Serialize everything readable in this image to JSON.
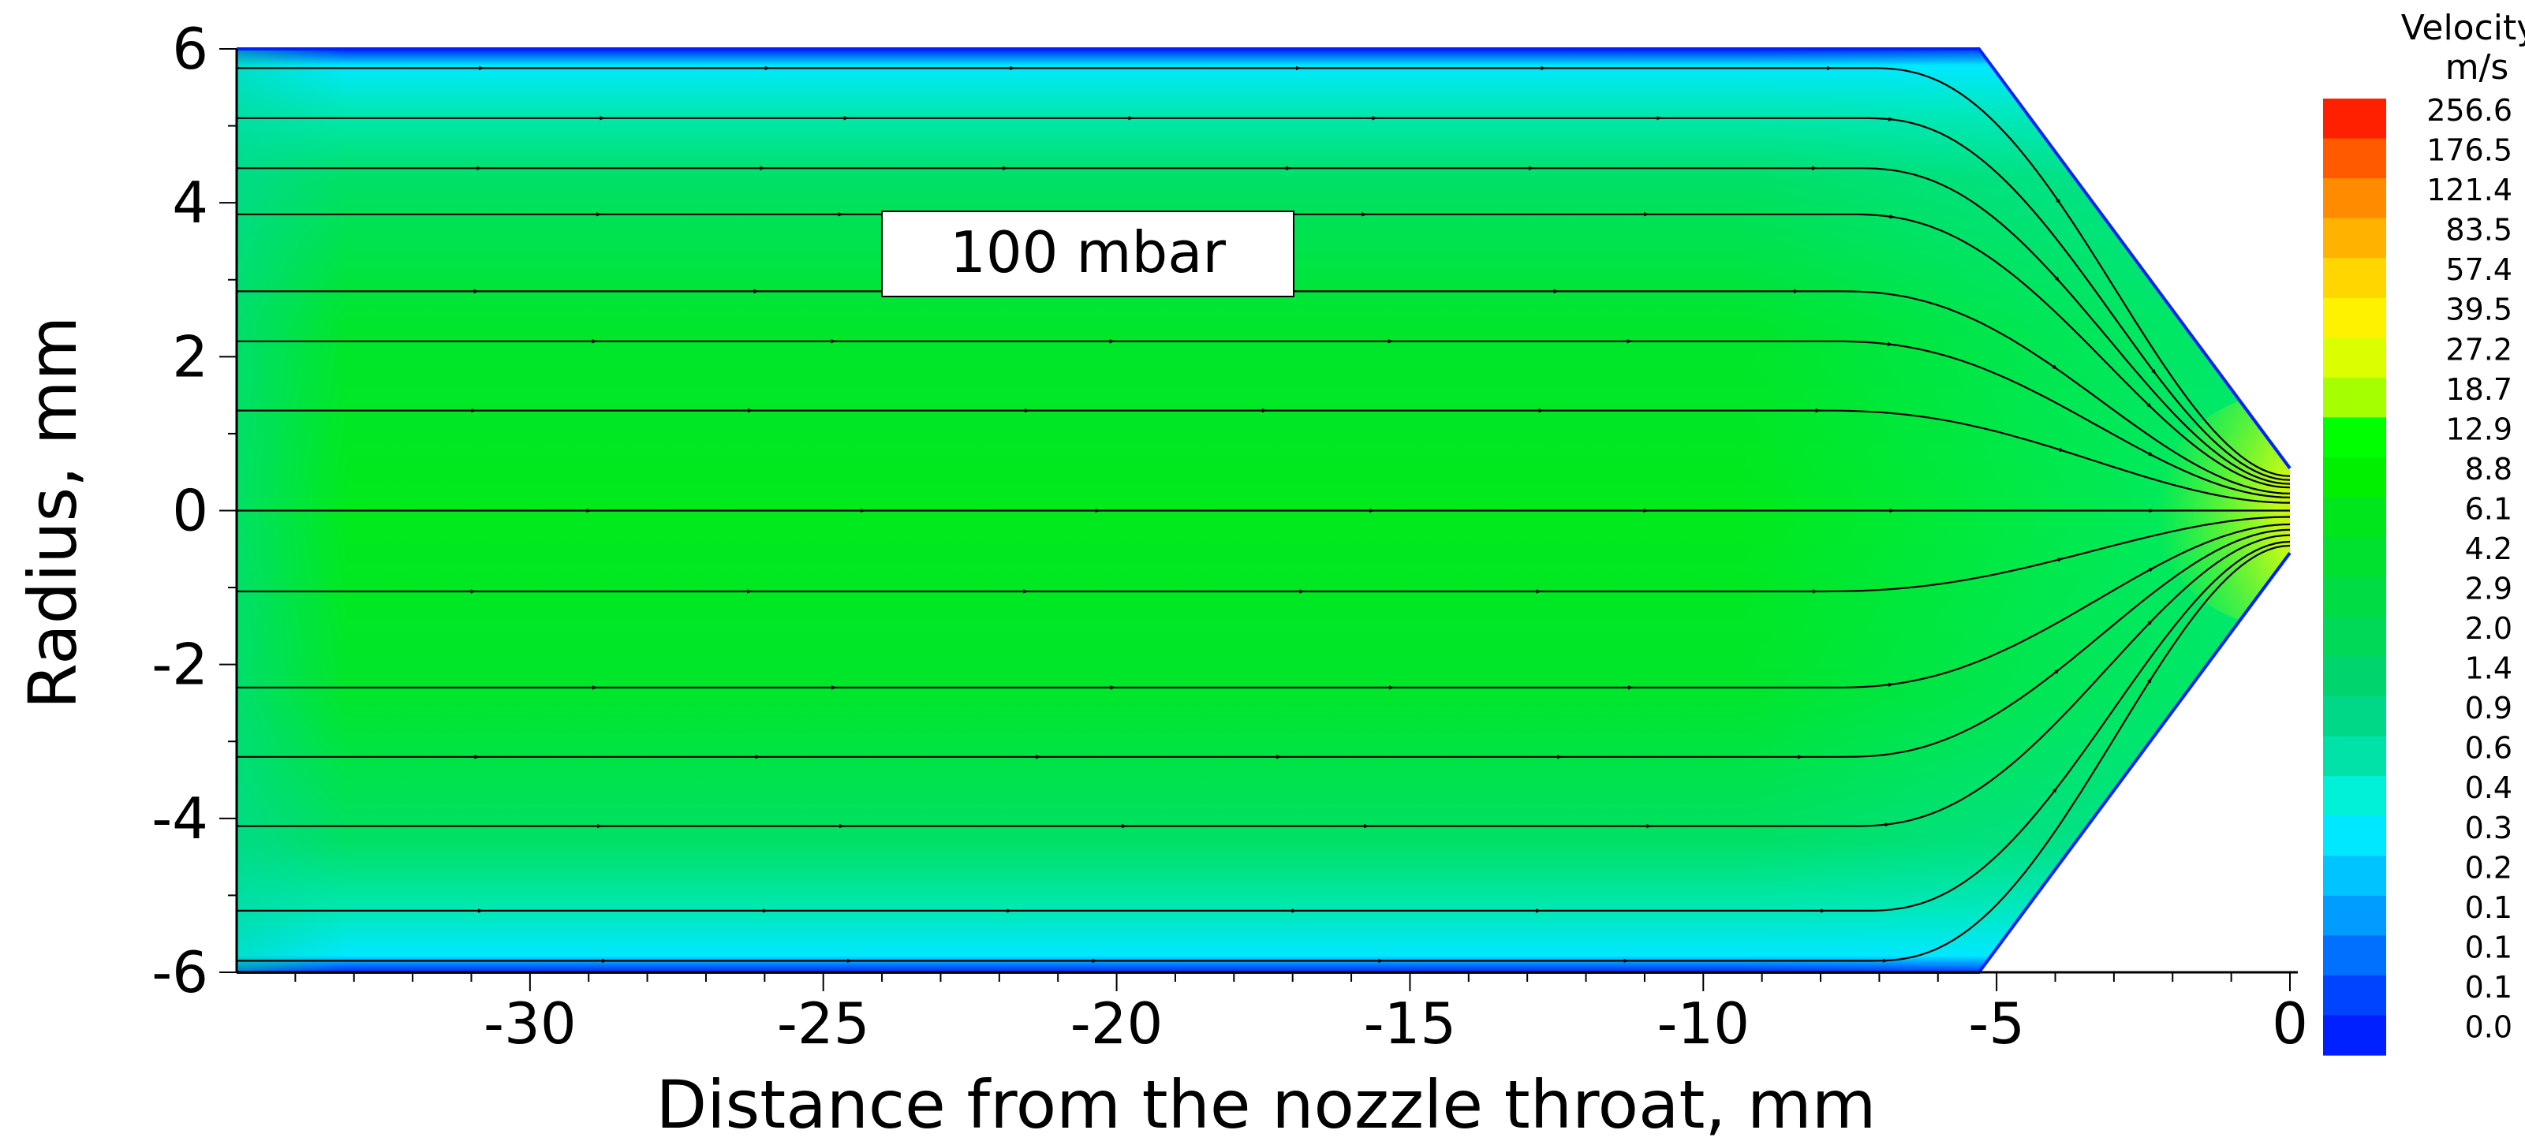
{
  "chart_data": {
    "type": "heatmap",
    "subtype": "velocity-contour-with-streamlines",
    "annotation": "100 mbar",
    "xlabel": "Distance from the nozzle throat, mm",
    "ylabel": "Radius,  mm",
    "xlim": [
      -35,
      0
    ],
    "ylim": [
      -6,
      6
    ],
    "x_ticks": [
      -30,
      -25,
      -20,
      -15,
      -10,
      -5,
      0
    ],
    "y_ticks": [
      -6,
      -4,
      -2,
      0,
      2,
      4,
      6
    ],
    "grid": false,
    "nozzle_wall": {
      "cylinder_radius": 6,
      "cone_start_x": -5.3,
      "throat_x": 0,
      "throat_radius": 0.55
    },
    "streamline_inlet_radii": [
      5.75,
      5.1,
      4.45,
      3.85,
      2.85,
      2.2,
      1.3,
      0,
      -1.05,
      -2.3,
      -3.2,
      -4.1,
      -5.2,
      -5.85
    ],
    "colorbar": {
      "title": "Velocity",
      "unit": "m/s",
      "levels": [
        "256.6",
        "176.5",
        "121.4",
        "83.5",
        "57.4",
        "39.5",
        "27.2",
        "18.7",
        "12.9",
        "8.8",
        "6.1",
        "4.2",
        "2.9",
        "2.0",
        "1.4",
        "0.9",
        "0.6",
        "0.4",
        "0.3",
        "0.2",
        "0.1",
        "0.1",
        "0.1",
        "0.0"
      ],
      "colors": [
        "#ff2000",
        "#ff5a00",
        "#ff8c00",
        "#ffb300",
        "#ffd600",
        "#fff200",
        "#dcff00",
        "#a6ff00",
        "#00ff00",
        "#00f000",
        "#00e61c",
        "#00e02e",
        "#00dc44",
        "#00d858",
        "#00d46c",
        "#00d888",
        "#00e2a8",
        "#00f0d8",
        "#00e8ff",
        "#00c4ff",
        "#009cff",
        "#0070ff",
        "#0044ff",
        "#0020ff"
      ]
    },
    "velocity_field_colors": {
      "core": "#00e61c",
      "near_wall": "#00e8ff",
      "wall": "#0020ff",
      "throat": "#ff7a00",
      "throat_halo": "#ffe000"
    }
  }
}
